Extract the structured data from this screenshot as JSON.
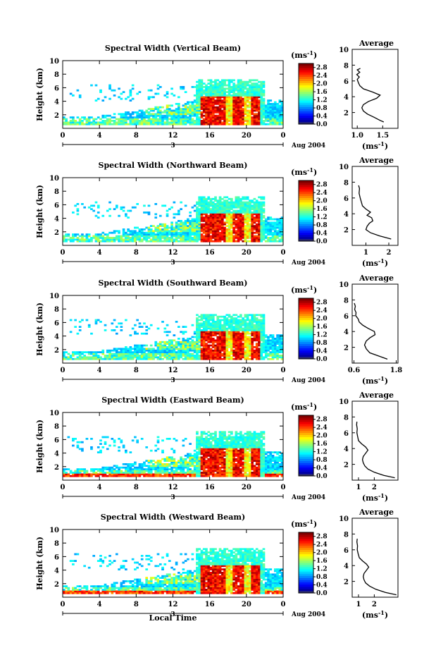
{
  "figure": {
    "xlabel": "Local Time",
    "date_label": "3",
    "month_label": "Aug 2004",
    "ylabel": "Height (km)",
    "unit_label": "(ms",
    "unit_exp": "-1",
    "profile_title": "Average",
    "profile_xlabel": "(ms",
    "profile_xexp": "-1"
  },
  "chart_data": [
    {
      "type": "heatmap",
      "title": "Spectral Width (Vertical Beam)",
      "x_ticks": [
        "0",
        "4",
        "8",
        "12",
        "16",
        "20",
        "0"
      ],
      "xlim": [
        0,
        24
      ],
      "ylim": [
        0,
        10
      ],
      "y_ticks": [
        "2",
        "4",
        "6",
        "8",
        "10"
      ],
      "colorbar_ticks": [
        "0.0",
        "0.4",
        "0.8",
        "1.2",
        "1.6",
        "2.0",
        "2.4",
        "2.8"
      ],
      "colorbar_range": [
        0,
        3.0
      ],
      "profile": {
        "title": "Average",
        "xlim": [
          0.9,
          1.8
        ],
        "x_ticks": [
          "1.0",
          "1.5"
        ],
        "y_ticks": [
          "2",
          "4",
          "6",
          "8",
          "10"
        ],
        "points": [
          [
            1.52,
            0.8
          ],
          [
            1.45,
            1.0
          ],
          [
            1.33,
            1.4
          ],
          [
            1.2,
            1.8
          ],
          [
            1.12,
            2.2
          ],
          [
            1.09,
            2.6
          ],
          [
            1.12,
            3.0
          ],
          [
            1.22,
            3.4
          ],
          [
            1.38,
            3.8
          ],
          [
            1.45,
            4.2
          ],
          [
            1.3,
            4.6
          ],
          [
            1.12,
            5.0
          ],
          [
            1.05,
            5.4
          ],
          [
            1.02,
            5.8
          ],
          [
            1.0,
            6.2
          ],
          [
            1.04,
            6.5
          ],
          [
            0.99,
            6.8
          ],
          [
            1.05,
            7.1
          ],
          [
            1.0,
            7.4
          ],
          [
            1.06,
            7.6
          ]
        ]
      }
    },
    {
      "type": "heatmap",
      "title": "Spectral Width (Northward Beam)",
      "x_ticks": [
        "0",
        "4",
        "8",
        "12",
        "16",
        "20",
        "0"
      ],
      "xlim": [
        0,
        24
      ],
      "ylim": [
        0,
        10
      ],
      "y_ticks": [
        "2",
        "4",
        "6",
        "8",
        "10"
      ],
      "colorbar_ticks": [
        "0.0",
        "0.4",
        "0.8",
        "1.2",
        "1.6",
        "2.0",
        "2.4",
        "2.8"
      ],
      "colorbar_range": [
        0,
        3.0
      ],
      "profile": {
        "title": "Average",
        "xlim": [
          0.4,
          2.4
        ],
        "x_ticks": [
          "1",
          "2"
        ],
        "y_ticks": [
          "2",
          "4",
          "6",
          "8",
          "10"
        ],
        "points": [
          [
            2.1,
            0.8
          ],
          [
            1.6,
            1.2
          ],
          [
            1.2,
            1.6
          ],
          [
            1.0,
            2.0
          ],
          [
            1.05,
            2.4
          ],
          [
            1.15,
            2.8
          ],
          [
            1.3,
            3.1
          ],
          [
            1.25,
            3.5
          ],
          [
            1.05,
            3.8
          ],
          [
            1.2,
            4.2
          ],
          [
            1.0,
            4.6
          ],
          [
            0.85,
            5.0
          ],
          [
            0.8,
            5.5
          ],
          [
            0.75,
            6.0
          ],
          [
            0.7,
            6.6
          ],
          [
            0.72,
            7.2
          ],
          [
            0.68,
            7.6
          ]
        ]
      }
    },
    {
      "type": "heatmap",
      "title": "Spectral Width (Southward Beam)",
      "x_ticks": [
        "0",
        "4",
        "8",
        "12",
        "16",
        "20",
        "0"
      ],
      "xlim": [
        0,
        24
      ],
      "ylim": [
        0,
        10
      ],
      "y_ticks": [
        "2",
        "4",
        "6",
        "8",
        "10"
      ],
      "colorbar_ticks": [
        "0.0",
        "0.4",
        "0.8",
        "1.2",
        "1.6",
        "2.0",
        "2.4",
        "2.8"
      ],
      "colorbar_range": [
        0,
        3.0
      ],
      "profile": {
        "title": "Average",
        "xlim": [
          0.55,
          1.85
        ],
        "x_ticks": [
          "0.6",
          "1.8"
        ],
        "y_ticks": [
          "2",
          "4",
          "6",
          "8",
          "10"
        ],
        "points": [
          [
            1.55,
            0.5
          ],
          [
            1.3,
            0.9
          ],
          [
            1.05,
            1.3
          ],
          [
            0.95,
            1.8
          ],
          [
            0.9,
            2.3
          ],
          [
            0.95,
            2.8
          ],
          [
            1.05,
            3.2
          ],
          [
            1.2,
            3.6
          ],
          [
            1.18,
            4.0
          ],
          [
            1.0,
            4.4
          ],
          [
            0.85,
            4.8
          ],
          [
            0.75,
            5.2
          ],
          [
            0.72,
            5.6
          ],
          [
            0.65,
            6.0
          ],
          [
            0.66,
            6.4
          ],
          [
            0.62,
            6.8
          ],
          [
            0.64,
            7.2
          ],
          [
            0.61,
            7.6
          ]
        ]
      }
    },
    {
      "type": "heatmap",
      "title": "Spectral Width (Eastward Beam)",
      "x_ticks": [
        "0",
        "4",
        "8",
        "12",
        "16",
        "20",
        "0"
      ],
      "xlim": [
        0,
        24
      ],
      "ylim": [
        0,
        10
      ],
      "y_ticks": [
        "2",
        "4",
        "6",
        "8",
        "10"
      ],
      "colorbar_ticks": [
        "0.0",
        "0.4",
        "0.8",
        "1.2",
        "1.6",
        "2.0",
        "2.4",
        "2.8"
      ],
      "colorbar_range": [
        0,
        3.0
      ],
      "profile": {
        "title": "Average",
        "xlim": [
          0.6,
          3.5
        ],
        "x_ticks": [
          "1",
          "2"
        ],
        "y_ticks": [
          "2",
          "4",
          "6",
          "8",
          "10"
        ],
        "points": [
          [
            3.3,
            0.3
          ],
          [
            2.6,
            0.6
          ],
          [
            2.0,
            1.0
          ],
          [
            1.6,
            1.4
          ],
          [
            1.4,
            1.8
          ],
          [
            1.3,
            2.2
          ],
          [
            1.25,
            2.6
          ],
          [
            1.3,
            3.0
          ],
          [
            1.45,
            3.4
          ],
          [
            1.6,
            3.8
          ],
          [
            1.45,
            4.2
          ],
          [
            1.2,
            4.6
          ],
          [
            1.0,
            5.0
          ],
          [
            0.95,
            5.5
          ],
          [
            0.9,
            6.0
          ],
          [
            0.92,
            6.5
          ],
          [
            0.88,
            7.0
          ],
          [
            0.9,
            7.4
          ]
        ]
      }
    },
    {
      "type": "heatmap",
      "title": "Spectral Width (Westward Beam)",
      "x_ticks": [
        "0",
        "4",
        "8",
        "12",
        "16",
        "20",
        "0"
      ],
      "xlim": [
        0,
        24
      ],
      "ylim": [
        0,
        10
      ],
      "y_ticks": [
        "2",
        "4",
        "6",
        "8",
        "10"
      ],
      "colorbar_ticks": [
        "0.0",
        "0.4",
        "0.8",
        "1.2",
        "1.6",
        "2.0",
        "2.4",
        "2.8"
      ],
      "colorbar_range": [
        0,
        3.0
      ],
      "profile": {
        "title": "Average",
        "xlim": [
          0.6,
          3.5
        ],
        "x_ticks": [
          "1",
          "2"
        ],
        "y_ticks": [
          "2",
          "4",
          "6",
          "8",
          "10"
        ],
        "points": [
          [
            3.4,
            0.3
          ],
          [
            2.7,
            0.6
          ],
          [
            2.1,
            1.0
          ],
          [
            1.7,
            1.4
          ],
          [
            1.45,
            1.8
          ],
          [
            1.35,
            2.2
          ],
          [
            1.3,
            2.6
          ],
          [
            1.35,
            3.0
          ],
          [
            1.5,
            3.4
          ],
          [
            1.65,
            3.8
          ],
          [
            1.5,
            4.2
          ],
          [
            1.25,
            4.6
          ],
          [
            1.05,
            5.0
          ],
          [
            0.98,
            5.5
          ],
          [
            0.92,
            6.0
          ],
          [
            0.94,
            6.5
          ],
          [
            0.9,
            7.0
          ],
          [
            0.92,
            7.4
          ]
        ]
      }
    }
  ]
}
